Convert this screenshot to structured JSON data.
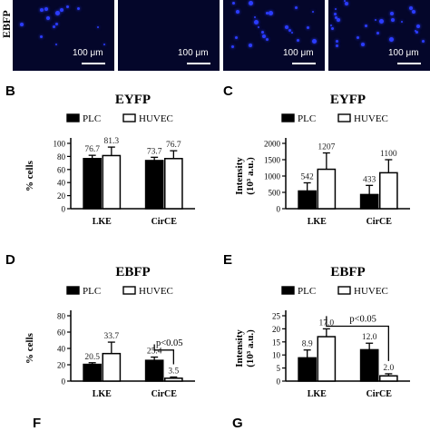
{
  "image_strip": {
    "row_label": "EBFP",
    "scale_label": "100 μm"
  },
  "panels": [
    {
      "letter": "B"
    },
    {
      "letter": "C"
    },
    {
      "letter": "D"
    },
    {
      "letter": "E"
    },
    {
      "letter": "F"
    },
    {
      "letter": "G"
    }
  ],
  "colors": {
    "PLC": "#000000",
    "HUVEC": "#ffffff",
    "image_bg": "#04062a",
    "nuclei": "#2b3cff"
  },
  "chart_data": [
    {
      "panel": "B",
      "type": "bar",
      "title": "EYFP",
      "ylabel": "% cells",
      "categories": [
        "LKE",
        "CirCE"
      ],
      "ylim": [
        0,
        100
      ],
      "yticks": [
        0,
        20,
        40,
        60,
        80,
        100
      ],
      "legend_position": "top",
      "series": [
        {
          "name": "PLC",
          "values": [
            76.7,
            73.7
          ],
          "errors": [
            5,
            5
          ],
          "labels": [
            "76.7",
            "73.7"
          ]
        },
        {
          "name": "HUVEC",
          "values": [
            81.3,
            76.7
          ],
          "errors": [
            13,
            12
          ],
          "labels": [
            "81.3",
            "76.7"
          ]
        }
      ],
      "annotations": []
    },
    {
      "panel": "C",
      "type": "bar",
      "title": "EYFP",
      "ylabel": "Intensity\n(10³ a.u.)",
      "categories": [
        "LKE",
        "CirCE"
      ],
      "ylim": [
        0,
        2000
      ],
      "yticks": [
        0,
        500,
        1000,
        1500,
        2000
      ],
      "legend_position": "top",
      "series": [
        {
          "name": "PLC",
          "values": [
            542,
            433
          ],
          "errors": [
            250,
            280
          ],
          "labels": [
            "542",
            "433"
          ]
        },
        {
          "name": "HUVEC",
          "values": [
            1207,
            1100
          ],
          "errors": [
            500,
            400
          ],
          "labels": [
            "1207",
            "1100"
          ]
        }
      ],
      "annotations": []
    },
    {
      "panel": "D",
      "type": "bar",
      "title": "EBFP",
      "ylabel": "% cells",
      "categories": [
        "LKE",
        "CirCE"
      ],
      "ylim": [
        0,
        80
      ],
      "yticks": [
        0,
        20,
        40,
        60,
        80
      ],
      "legend_position": "top",
      "series": [
        {
          "name": "PLC",
          "values": [
            20.5,
            25.4
          ],
          "errors": [
            2,
            4
          ],
          "labels": [
            "20.5",
            "25.4"
          ]
        },
        {
          "name": "HUVEC",
          "values": [
            33.7,
            3.5
          ],
          "errors": [
            14,
            1.5
          ],
          "labels": [
            "33.7",
            "3.5"
          ]
        }
      ],
      "annotations": [
        {
          "text": "p<0.05",
          "type": "bracket",
          "pair": [
            [
              1,
              0
            ],
            [
              1,
              1
            ]
          ],
          "level": 38
        }
      ]
    },
    {
      "panel": "E",
      "type": "bar",
      "title": "EBFP",
      "ylabel": "Intensity\n(10³ a.u.)",
      "categories": [
        "LKE",
        "CirCE"
      ],
      "ylim": [
        0,
        25
      ],
      "yticks": [
        0,
        5,
        10,
        15,
        20,
        25
      ],
      "legend_position": "top",
      "series": [
        {
          "name": "PLC",
          "values": [
            8.9,
            12.0
          ],
          "errors": [
            3,
            2.5
          ],
          "labels": [
            "8.9",
            "12.0"
          ]
        },
        {
          "name": "HUVEC",
          "values": [
            17.0,
            2.0
          ],
          "errors": [
            3,
            0.8
          ],
          "labels": [
            "17.0",
            "2.0"
          ]
        }
      ],
      "annotations": [
        {
          "text": "p<0.05",
          "type": "bracket",
          "pair": [
            [
              0,
              1
            ],
            [
              1,
              1
            ]
          ],
          "level": 21
        }
      ]
    }
  ]
}
